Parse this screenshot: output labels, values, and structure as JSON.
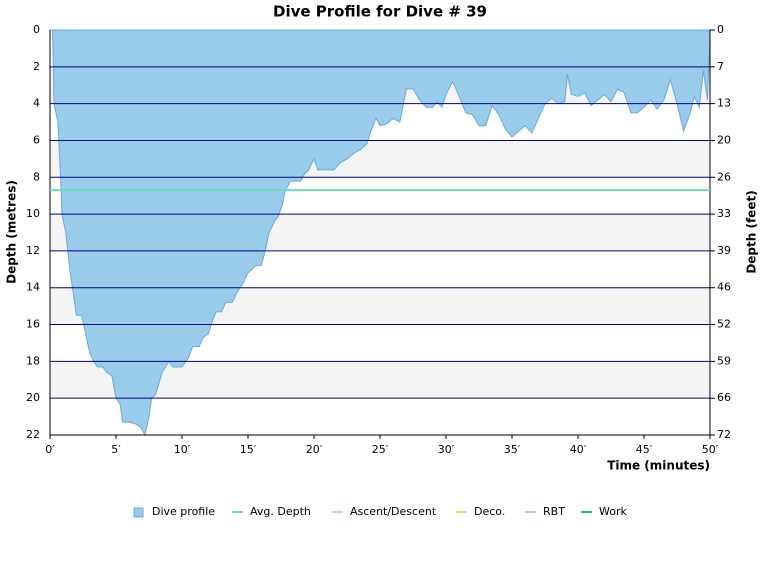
{
  "chart_data": {
    "type": "area",
    "title": "Dive Profile for Dive # 39",
    "xlabel": "Time (minutes)",
    "ylabel": "Depth (metres)",
    "y2label": "Depth (feet)",
    "xlim": [
      0,
      50
    ],
    "xticks": [
      {
        "value": 0,
        "label": "0′"
      },
      {
        "value": 5,
        "label": "5′"
      },
      {
        "value": 10,
        "label": "10′"
      },
      {
        "value": 15,
        "label": "15′"
      },
      {
        "value": 20,
        "label": "20′"
      },
      {
        "value": 25,
        "label": "25′"
      },
      {
        "value": 30,
        "label": "30′"
      },
      {
        "value": 35,
        "label": "35′"
      },
      {
        "value": 40,
        "label": "40′"
      },
      {
        "value": 45,
        "label": "45′"
      },
      {
        "value": 50,
        "label": "50′"
      }
    ],
    "ylim": [
      0,
      22
    ],
    "yticks": [
      0,
      2,
      4,
      6,
      8,
      10,
      12,
      14,
      16,
      18,
      20,
      22
    ],
    "y2lim": [
      0,
      72.18
    ],
    "y2ticks": [
      0,
      {
        "value": 6.56,
        "label": "7"
      },
      {
        "value": 13.12,
        "label": "13"
      },
      {
        "value": 19.69,
        "label": "20"
      },
      {
        "value": 26.25,
        "label": "26"
      },
      {
        "value": 32.81,
        "label": "33"
      },
      {
        "value": 39.37,
        "label": "39"
      },
      {
        "value": 45.93,
        "label": "46"
      },
      {
        "value": 52.49,
        "label": "52"
      },
      {
        "value": 59.06,
        "label": "59"
      },
      {
        "value": 65.62,
        "label": "66"
      },
      {
        "value": 72.18,
        "label": "72"
      }
    ],
    "inverted": true,
    "grid": true,
    "x": [
      0,
      0.2,
      0.3,
      0.6,
      0.8,
      0.9,
      1.2,
      1.5,
      1.8,
      2,
      2.4,
      2.7,
      3,
      3.3,
      3.6,
      4,
      4.3,
      4.7,
      5,
      5.3,
      5.5,
      6,
      6.5,
      6.9,
      7.2,
      7.5,
      7.7,
      8,
      8.5,
      9,
      9.3,
      10,
      10.5,
      10.8,
      11.3,
      11.6,
      12,
      12.3,
      12.6,
      13,
      13.3,
      13.8,
      14.2,
      14.6,
      15,
      15.6,
      16,
      16.3,
      16.6,
      17,
      17.3,
      17.6,
      17.8,
      18.2,
      19,
      19.3,
      19.6,
      20,
      20.3,
      21.5,
      22,
      22.5,
      23,
      23.5,
      24,
      24.3,
      24.7,
      25,
      25.5,
      26,
      26.5,
      27,
      27.5,
      28,
      28.5,
      29,
      29.3,
      29.7,
      30,
      30.5,
      31,
      31.5,
      32,
      32.5,
      33,
      33.5,
      34,
      34.5,
      35,
      35.5,
      36,
      36.5,
      37,
      37.5,
      38,
      38.5,
      39,
      39.2,
      39.5,
      40,
      40.5,
      41,
      41.5,
      42,
      42.5,
      43,
      43.5,
      44,
      44.5,
      45,
      45.5,
      46,
      46.5,
      47,
      47.5,
      48,
      48.5,
      48.8,
      49.2,
      49.5,
      49.8,
      50,
      50
    ],
    "series": [
      {
        "name": "Dive profile",
        "color": "#99ccea",
        "values": [
          0,
          0,
          4,
          5,
          8,
          10,
          11,
          13,
          14.5,
          15.5,
          15.5,
          16.5,
          17.5,
          18,
          18.3,
          18.3,
          18.6,
          18.8,
          20,
          20.3,
          21.3,
          21.3,
          21.4,
          21.6,
          22,
          21,
          20,
          19.8,
          18.6,
          18,
          18.3,
          18.3,
          17.8,
          17.2,
          17.2,
          16.7,
          16.5,
          15.8,
          15.3,
          15.3,
          14.8,
          14.8,
          14.2,
          13.8,
          13.2,
          12.8,
          12.8,
          12,
          11,
          10.4,
          10.1,
          9.5,
          8.8,
          8.2,
          8.2,
          7.8,
          7.6,
          7,
          7.6,
          7.6,
          7.2,
          7,
          6.7,
          6.5,
          6.2,
          5.5,
          4.8,
          5.2,
          5.1,
          4.8,
          5,
          3.2,
          3.2,
          3.8,
          4.2,
          4.2,
          3.9,
          4.2,
          3.5,
          2.8,
          3.6,
          4.5,
          4.6,
          5.2,
          5.2,
          4.1,
          4.6,
          5.4,
          5.8,
          5.5,
          5.2,
          5.6,
          4.8,
          4,
          3.7,
          4,
          3.9,
          2.4,
          3.5,
          3.6,
          3.4,
          4.1,
          3.8,
          3.5,
          3.9,
          3.2,
          3.4,
          4.5,
          4.5,
          4.2,
          3.8,
          4.3,
          3.8,
          2.7,
          4,
          5.5,
          4.5,
          3.6,
          4.2,
          2.2,
          3.8,
          0.5,
          0
        ]
      },
      {
        "name": "Avg. Depth",
        "color": "#66ddbb",
        "value": 8.7
      },
      {
        "name": "Ascent/Descent",
        "color": "#99ee88"
      },
      {
        "name": "Deco.",
        "color": "#dddd77"
      },
      {
        "name": "RBT",
        "color": "#99ddee"
      },
      {
        "name": "Work",
        "color": "#22aa99"
      }
    ]
  }
}
